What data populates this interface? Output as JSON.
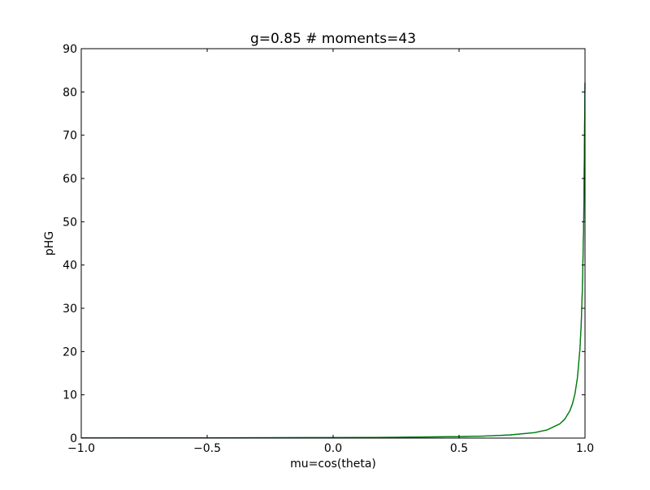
{
  "chart_data": {
    "type": "line",
    "title": "g=0.85    # moments=43",
    "xlabel": "mu=cos(theta)",
    "ylabel": "pHG",
    "xlim": [
      -1.0,
      1.0
    ],
    "ylim": [
      0,
      90
    ],
    "xticks": [
      "−1.0",
      "−0.5",
      "0.0",
      "0.5",
      "1.0"
    ],
    "xtick_values": [
      -1.0,
      -0.5,
      0.0,
      0.5,
      1.0
    ],
    "yticks": [
      "0",
      "10",
      "20",
      "30",
      "40",
      "50",
      "60",
      "70",
      "80",
      "90"
    ],
    "ytick_values": [
      0,
      10,
      20,
      30,
      40,
      50,
      60,
      70,
      80,
      90
    ],
    "grid": false,
    "x": [
      -1.0,
      -0.75,
      -0.5,
      -0.25,
      0.0,
      0.25,
      0.5,
      0.6,
      0.7,
      0.8,
      0.85,
      0.9,
      0.92,
      0.94,
      0.95,
      0.96,
      0.97,
      0.98,
      0.985,
      0.99,
      0.995,
      1.0
    ],
    "series": [
      {
        "color": "#1f5fbf",
        "values": [
          0.044,
          0.054,
          0.067,
          0.088,
          0.123,
          0.188,
          0.341,
          0.471,
          0.714,
          1.27,
          1.9,
          3.29,
          4.4,
          6.32,
          7.87,
          10.19,
          13.93,
          20.66,
          26.39,
          35.35,
          50.84,
          82.22
        ]
      },
      {
        "color": "#008000",
        "values": [
          0.044,
          0.054,
          0.067,
          0.088,
          0.123,
          0.188,
          0.341,
          0.471,
          0.714,
          1.27,
          1.9,
          3.29,
          4.4,
          6.32,
          7.87,
          10.19,
          13.93,
          20.66,
          26.39,
          35.35,
          50.84,
          82.0
        ]
      }
    ]
  }
}
